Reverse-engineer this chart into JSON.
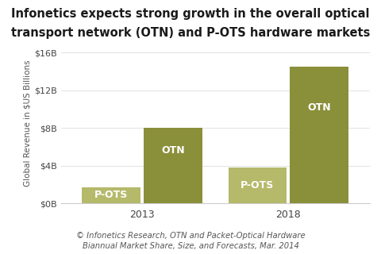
{
  "title_line1": "Infonetics expects strong growth in the overall optical",
  "title_line2": "transport network (OTN) and P-OTS hardware markets",
  "groups": [
    "2013",
    "2018"
  ],
  "pots_values": [
    1.7,
    3.8
  ],
  "otn_values": [
    8.0,
    14.5
  ],
  "pots_color": "#b5b96a",
  "otn_color": "#8a8f3a",
  "bar_width": 0.18,
  "group_centers": [
    0.3,
    0.75
  ],
  "bar_gap": 0.005,
  "ylabel": "Global Revenue in $US Billions",
  "yticks": [
    0,
    4,
    8,
    12,
    16
  ],
  "ytick_labels": [
    "$0B",
    "$4B",
    "$8B",
    "$12B",
    "$16B"
  ],
  "ylim": [
    0,
    17
  ],
  "caption_line1": "© Infonetics Research, OTN and Packet-Optical Hardware",
  "caption_line2": "Biannual Market Share, Size, and Forecasts, Mar. 2014",
  "label_pots": "P-OTS",
  "label_otn": "OTN",
  "background_color": "#ffffff",
  "title_fontsize": 10.5,
  "bar_label_fontsize": 9,
  "axis_label_fontsize": 7.5,
  "tick_fontsize": 9,
  "caption_fontsize": 7.2
}
